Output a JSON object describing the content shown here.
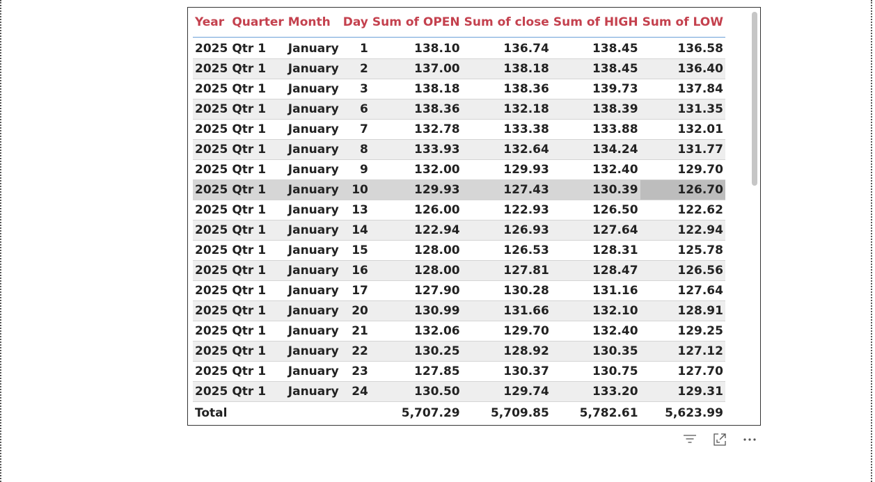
{
  "table": {
    "headers": {
      "year": "Year",
      "quarter": "Quarter",
      "month": "Month",
      "day": "Day",
      "open": "Sum of OPEN",
      "close": "Sum of close",
      "high": "Sum of HIGH",
      "low": "Sum of LOW"
    },
    "rows": [
      {
        "year": "2025",
        "quarter": "Qtr 1",
        "month": "January",
        "day": "1",
        "open": "138.10",
        "close": "136.74",
        "high": "138.45",
        "low": "136.58"
      },
      {
        "year": "2025",
        "quarter": "Qtr 1",
        "month": "January",
        "day": "2",
        "open": "137.00",
        "close": "138.18",
        "high": "138.45",
        "low": "136.40"
      },
      {
        "year": "2025",
        "quarter": "Qtr 1",
        "month": "January",
        "day": "3",
        "open": "138.18",
        "close": "138.36",
        "high": "139.73",
        "low": "137.84"
      },
      {
        "year": "2025",
        "quarter": "Qtr 1",
        "month": "January",
        "day": "6",
        "open": "138.36",
        "close": "132.18",
        "high": "138.39",
        "low": "131.35"
      },
      {
        "year": "2025",
        "quarter": "Qtr 1",
        "month": "January",
        "day": "7",
        "open": "132.78",
        "close": "133.38",
        "high": "133.88",
        "low": "132.01"
      },
      {
        "year": "2025",
        "quarter": "Qtr 1",
        "month": "January",
        "day": "8",
        "open": "133.93",
        "close": "132.64",
        "high": "134.24",
        "low": "131.77"
      },
      {
        "year": "2025",
        "quarter": "Qtr 1",
        "month": "January",
        "day": "9",
        "open": "132.00",
        "close": "129.93",
        "high": "132.40",
        "low": "129.70"
      },
      {
        "year": "2025",
        "quarter": "Qtr 1",
        "month": "January",
        "day": "10",
        "open": "129.93",
        "close": "127.43",
        "high": "130.39",
        "low": "126.70"
      },
      {
        "year": "2025",
        "quarter": "Qtr 1",
        "month": "January",
        "day": "13",
        "open": "126.00",
        "close": "122.93",
        "high": "126.50",
        "low": "122.62"
      },
      {
        "year": "2025",
        "quarter": "Qtr 1",
        "month": "January",
        "day": "14",
        "open": "122.94",
        "close": "126.93",
        "high": "127.64",
        "low": "122.94"
      },
      {
        "year": "2025",
        "quarter": "Qtr 1",
        "month": "January",
        "day": "15",
        "open": "128.00",
        "close": "126.53",
        "high": "128.31",
        "low": "125.78"
      },
      {
        "year": "2025",
        "quarter": "Qtr 1",
        "month": "January",
        "day": "16",
        "open": "128.00",
        "close": "127.81",
        "high": "128.47",
        "low": "126.56"
      },
      {
        "year": "2025",
        "quarter": "Qtr 1",
        "month": "January",
        "day": "17",
        "open": "127.90",
        "close": "130.28",
        "high": "131.16",
        "low": "127.64"
      },
      {
        "year": "2025",
        "quarter": "Qtr 1",
        "month": "January",
        "day": "20",
        "open": "130.99",
        "close": "131.66",
        "high": "132.10",
        "low": "128.91"
      },
      {
        "year": "2025",
        "quarter": "Qtr 1",
        "month": "January",
        "day": "21",
        "open": "132.06",
        "close": "129.70",
        "high": "132.40",
        "low": "129.25"
      },
      {
        "year": "2025",
        "quarter": "Qtr 1",
        "month": "January",
        "day": "22",
        "open": "130.25",
        "close": "128.92",
        "high": "130.35",
        "low": "127.12"
      },
      {
        "year": "2025",
        "quarter": "Qtr 1",
        "month": "January",
        "day": "23",
        "open": "127.85",
        "close": "130.37",
        "high": "130.75",
        "low": "127.70"
      },
      {
        "year": "2025",
        "quarter": "Qtr 1",
        "month": "January",
        "day": "24",
        "open": "130.50",
        "close": "129.74",
        "high": "133.20",
        "low": "129.31"
      }
    ],
    "total": {
      "label": "Total",
      "open": "5,707.29",
      "close": "5,709.85",
      "high": "5,782.61",
      "low": "5,623.99"
    }
  },
  "toolbar": {
    "filter_icon": "filter-icon",
    "focus_icon": "focus-mode-icon",
    "more_icon": "more-options-icon"
  },
  "colors": {
    "header_text": "#c4414e",
    "row_stripe": "#eeeeee",
    "selected_row": "#d6d6d6",
    "selected_cell": "#bdbdbd",
    "header_rule": "#6aa0d8"
  }
}
